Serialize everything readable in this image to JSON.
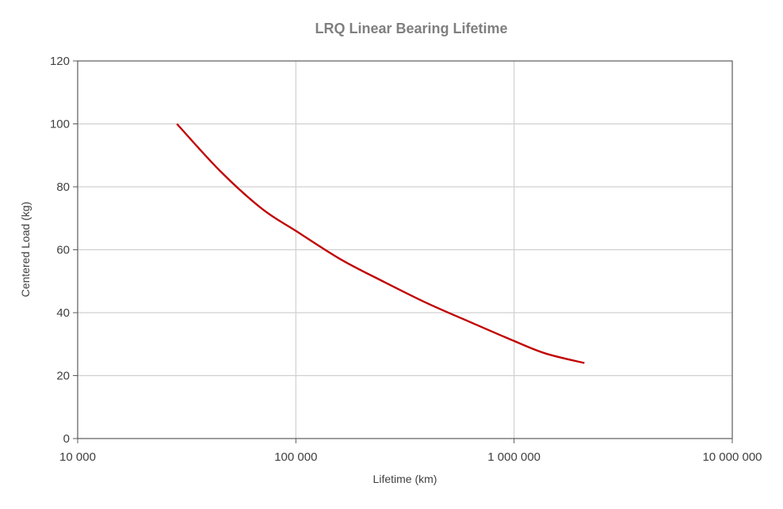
{
  "chart_data": {
    "type": "line",
    "title": "LRQ Linear Bearing Lifetime",
    "xlabel": "Lifetime (km)",
    "ylabel": "Centered Load (kg)",
    "xscale": "log",
    "xlim": [
      10000,
      10000000
    ],
    "ylim": [
      0,
      120
    ],
    "x_ticks": [
      10000,
      100000,
      1000000,
      10000000
    ],
    "x_tick_labels": [
      "10 000",
      "100 000",
      "1 000 000",
      "10 000 000"
    ],
    "y_ticks": [
      0,
      20,
      40,
      60,
      80,
      100,
      120
    ],
    "y_tick_labels": [
      "0",
      "20",
      "40",
      "60",
      "80",
      "100",
      "120"
    ],
    "grid": true,
    "legend": "none",
    "series": [
      {
        "color": "#c00000",
        "points": [
          [
            28500,
            100
          ],
          [
            45000,
            85
          ],
          [
            70000,
            73
          ],
          [
            100000,
            66
          ],
          [
            160000,
            57
          ],
          [
            250000,
            50
          ],
          [
            400000,
            43
          ],
          [
            630000,
            37
          ],
          [
            1000000,
            31
          ],
          [
            1400000,
            27
          ],
          [
            2100000,
            24
          ]
        ]
      }
    ]
  }
}
